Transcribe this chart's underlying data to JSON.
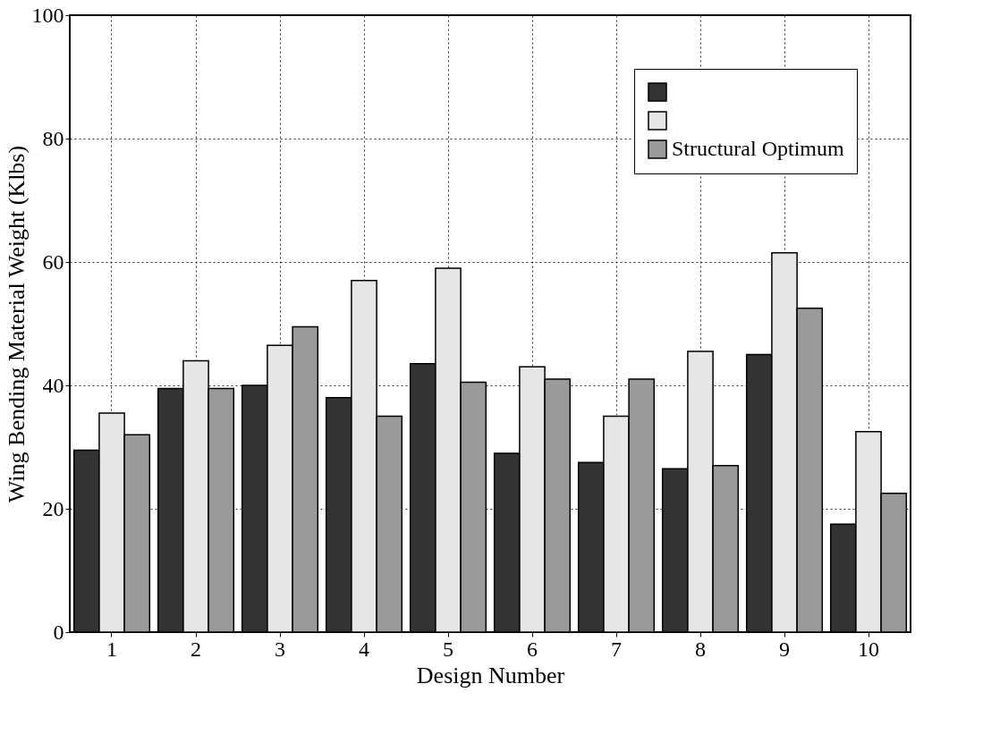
{
  "chart_data": {
    "type": "bar",
    "xlabel": "Design Number",
    "ylabel": "Wing Bending Material Weight (Klbs)",
    "categories": [
      "1",
      "2",
      "3",
      "4",
      "5",
      "6",
      "7",
      "8",
      "9",
      "10"
    ],
    "series": [
      {
        "color": "#333333",
        "values": [
          29.5,
          39.5,
          40,
          38,
          43.5,
          29,
          27.5,
          26.5,
          45,
          17.5
        ]
      },
      {
        "color": "#e6e6e6",
        "values": [
          35.5,
          44,
          46.5,
          57,
          59,
          43,
          35,
          45.5,
          61.5,
          32.5
        ]
      },
      {
        "name": "Structural Optimum",
        "color": "#9a9a9a",
        "values": [
          32,
          39.5,
          49.5,
          35,
          40.5,
          41,
          41,
          27,
          52.5,
          22.5
        ]
      }
    ],
    "ylim": [
      0,
      100
    ],
    "yticks": [
      0,
      20,
      40,
      60,
      80,
      100
    ],
    "grid": true,
    "legend": "top right"
  }
}
